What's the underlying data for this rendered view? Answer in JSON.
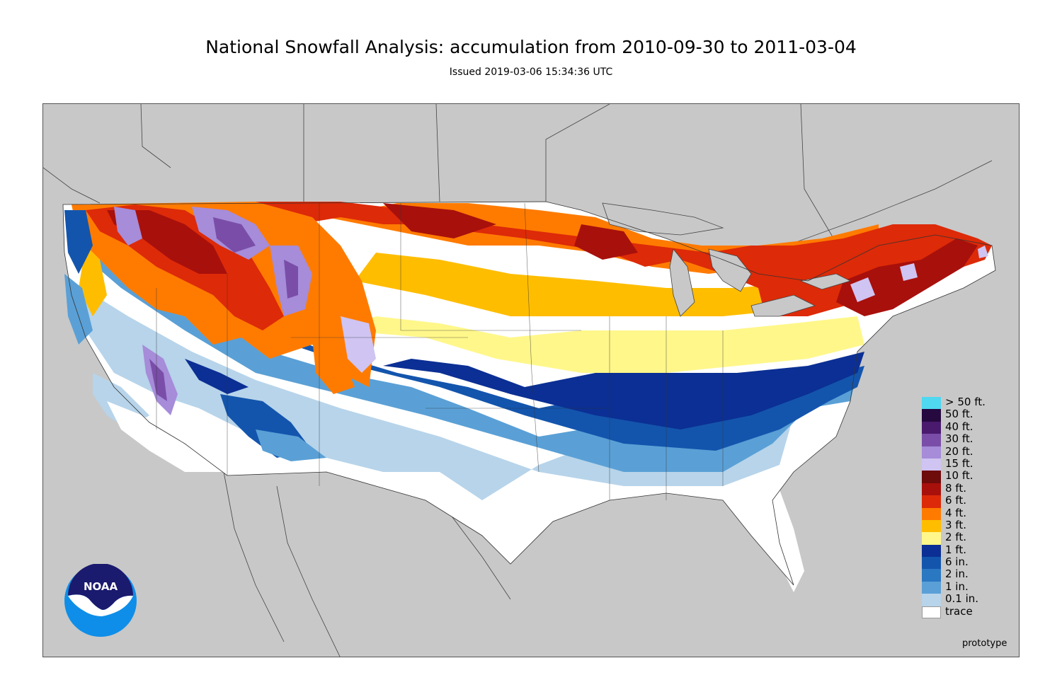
{
  "header": {
    "title": "National Snowfall Analysis: accumulation from 2010-09-30 to 2011-03-04",
    "subtitle": "Issued 2019-03-06 15:34:36 UTC"
  },
  "map": {
    "background_color": "#c8c8c8",
    "land_outside_color": "#c8c8c8"
  },
  "legend": {
    "items": [
      {
        "label": "> 50 ft.",
        "color": "#4fd8f0"
      },
      {
        "label": "50 ft.",
        "color": "#26093f"
      },
      {
        "label": "40 ft.",
        "color": "#4a1a6e"
      },
      {
        "label": "30 ft.",
        "color": "#7a4ea8"
      },
      {
        "label": "20 ft.",
        "color": "#a68cd9"
      },
      {
        "label": "15 ft.",
        "color": "#cfc4f2"
      },
      {
        "label": "10 ft.",
        "color": "#6e0b0b"
      },
      {
        "label": "8 ft.",
        "color": "#a8100c"
      },
      {
        "label": "6 ft.",
        "color": "#dd2a08"
      },
      {
        "label": "4 ft.",
        "color": "#ff7b00"
      },
      {
        "label": "3 ft.",
        "color": "#ffbd00"
      },
      {
        "label": "2 ft.",
        "color": "#fff78a"
      },
      {
        "label": "1 ft.",
        "color": "#0b2f94"
      },
      {
        "label": "6 in.",
        "color": "#1355ad"
      },
      {
        "label": "2 in.",
        "color": "#2a78c2"
      },
      {
        "label": "1 in.",
        "color": "#5aa0d6"
      },
      {
        "label": "0.1 in.",
        "color": "#b7d4ea"
      },
      {
        "label": "trace",
        "color": "#ffffff"
      }
    ]
  },
  "footer": {
    "prototype_label": "prototype"
  },
  "logo": {
    "text": "NOAA",
    "colors": {
      "navy": "#1a1a6e",
      "blue": "#0e8ee8",
      "white": "#ffffff"
    }
  }
}
